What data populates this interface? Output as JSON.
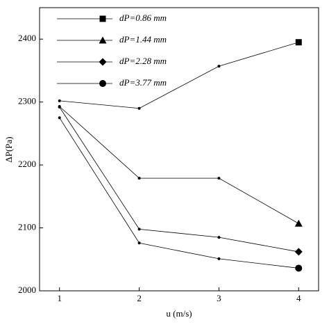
{
  "chart_data": {
    "type": "line",
    "x": [
      1,
      2,
      3,
      4
    ],
    "series": [
      {
        "name": "dP=0.86 mm",
        "marker": "square",
        "color": "#000000",
        "values": [
          2302,
          2290,
          2357,
          2395
        ]
      },
      {
        "name": "dP=1.44 mm",
        "marker": "triangle",
        "color": "#000000",
        "values": [
          2293,
          2179,
          2179,
          2107
        ]
      },
      {
        "name": "dP=2.28 mm",
        "marker": "diamond",
        "color": "#000000",
        "values": [
          2292,
          2098,
          2085,
          2062
        ]
      },
      {
        "name": "dP=3.77 mm",
        "marker": "circle",
        "color": "#000000",
        "values": [
          2275,
          2076,
          2051,
          2036
        ]
      }
    ],
    "xlabel": "u (m/s)",
    "ylabel": "ΔP(Pa)",
    "xlim": [
      0.75,
      4.25
    ],
    "xticks": [
      1,
      2,
      3,
      4
    ],
    "ylim": [
      2000,
      2450
    ],
    "yticks": [
      2000,
      2100,
      2200,
      2300,
      2400
    ],
    "legend": "upper left"
  }
}
